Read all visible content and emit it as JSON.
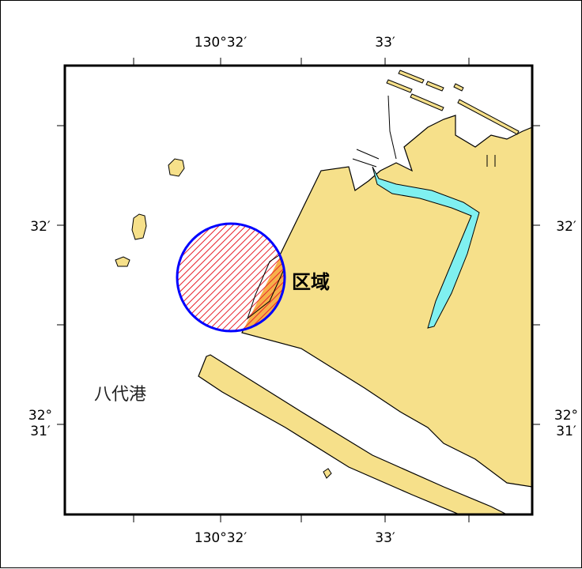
{
  "map": {
    "longitude_labels": {
      "lon_130_32": "130°32′",
      "lon_33": "33′"
    },
    "latitude_labels": {
      "lat_32": "32′",
      "lat_31_line1": "32°",
      "lat_31_line2": "31′"
    },
    "place_name": "八代港",
    "area_label": "区域",
    "colors": {
      "land": "#f6e08a",
      "water": "#ffffff",
      "channel": "#7ff0f0",
      "circle_outline": "#0000ff",
      "hatch": "#e8202a",
      "frame": "#000000"
    },
    "icons": {
      "area_marker": "hatched-circle"
    }
  }
}
